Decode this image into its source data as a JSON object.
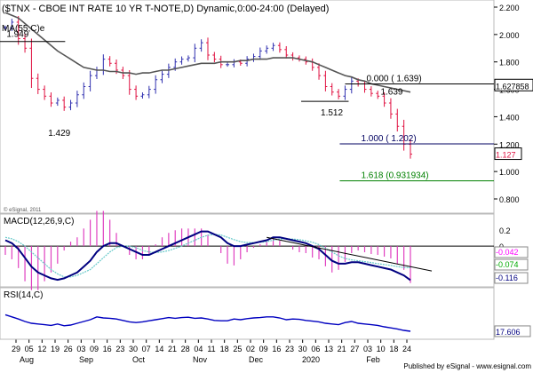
{
  "header": {
    "title": "($TNX - CBOE INT RATE 10 YR T-NOTE,D) Dynamic,0:00-24:00 (Delayed)",
    "ma_label": "MA(55,C)e",
    "copyright": "© eSignal, 2011",
    "footer": "Published by eSignal - www.esignal.com"
  },
  "chart_data": {
    "type": "line",
    "symbol": "$TNX",
    "subtitle": "",
    "x_tick_labels": [
      "29",
      "05",
      "12",
      "19",
      "26",
      "03",
      "09",
      "16",
      "23",
      "30",
      "07",
      "14",
      "21",
      "28",
      "04",
      "11",
      "18",
      "25",
      "02",
      "09",
      "16",
      "23",
      "30",
      "06",
      "13",
      "21",
      "27",
      "03",
      "10",
      "18",
      "24"
    ],
    "month_labels": [
      "Aug",
      "Sep",
      "Oct",
      "Nov",
      "Dec",
      "2020",
      "Feb"
    ],
    "price_panel": {
      "y_ticks": [
        "2.200",
        "2.000",
        "1.800",
        "1.600",
        "1.400",
        "1.200",
        "1.000",
        "0.800"
      ],
      "ylim": [
        0.8,
        2.2
      ],
      "last_price": "1.127",
      "marker_price": "1.627858",
      "colors": {
        "up": "#3030b0",
        "down": "#e01040",
        "ma": "#555555"
      },
      "close": [
        2.05,
        2.09,
        1.97,
        1.9,
        1.68,
        1.6,
        1.55,
        1.5,
        1.52,
        1.47,
        1.5,
        1.56,
        1.62,
        1.7,
        1.74,
        1.82,
        1.79,
        1.74,
        1.7,
        1.6,
        1.55,
        1.56,
        1.6,
        1.67,
        1.71,
        1.76,
        1.8,
        1.82,
        1.83,
        1.9,
        1.94,
        1.85,
        1.82,
        1.78,
        1.78,
        1.8,
        1.79,
        1.82,
        1.84,
        1.88,
        1.9,
        1.92,
        1.89,
        1.85,
        1.83,
        1.82,
        1.8,
        1.76,
        1.7,
        1.62,
        1.58,
        1.55,
        1.6,
        1.66,
        1.64,
        1.6,
        1.57,
        1.55,
        1.5,
        1.42,
        1.33,
        1.2,
        1.127
      ],
      "ma55": [
        2.16,
        2.14,
        2.12,
        2.08,
        2.04,
        2.0,
        1.96,
        1.92,
        1.88,
        1.85,
        1.82,
        1.79,
        1.76,
        1.75,
        1.74,
        1.74,
        1.73,
        1.73,
        1.72,
        1.72,
        1.71,
        1.72,
        1.72,
        1.73,
        1.74,
        1.74,
        1.75,
        1.76,
        1.77,
        1.78,
        1.79,
        1.79,
        1.79,
        1.8,
        1.8,
        1.8,
        1.81,
        1.81,
        1.82,
        1.82,
        1.82,
        1.83,
        1.83,
        1.83,
        1.83,
        1.82,
        1.81,
        1.8,
        1.78,
        1.76,
        1.74,
        1.72,
        1.7,
        1.69,
        1.67,
        1.66,
        1.64,
        1.63,
        1.62,
        1.61,
        1.6,
        1.59,
        1.58
      ],
      "annotations": [
        {
          "label": "1.949",
          "value": 1.949
        },
        {
          "label": "1.429",
          "value": 1.429
        },
        {
          "label": "1.512",
          "value": 1.512
        },
        {
          "label": "1.639",
          "value": 1.639
        }
      ],
      "fib_levels": [
        {
          "label": "0.000 ( 1.639)",
          "value": 1.639,
          "color": "#000000"
        },
        {
          "label": "1.000 ( 1.202)",
          "value": 1.202,
          "color": "#000060"
        },
        {
          "label": "1.618 (0.931934)",
          "value": 0.931934,
          "color": "#008000"
        }
      ]
    },
    "macd_panel": {
      "label": "MACD(12,26,9,C)",
      "ylim": [
        -0.13,
        0.07
      ],
      "y_ticks": [
        "0.2"
      ],
      "zero_label": "0",
      "value_labels": [
        {
          "text": "-0.042",
          "color": "#ff00ff"
        },
        {
          "text": "-0.074",
          "color": "#00aa00"
        },
        {
          "text": "-0.116",
          "color": "#000080"
        }
      ],
      "macd": [
        0.02,
        0.01,
        -0.01,
        -0.04,
        -0.07,
        -0.09,
        -0.1,
        -0.11,
        -0.115,
        -0.11,
        -0.1,
        -0.09,
        -0.07,
        -0.05,
        -0.02,
        0.0,
        0.01,
        0.01,
        0.0,
        -0.01,
        -0.02,
        -0.03,
        -0.03,
        -0.02,
        -0.01,
        0.0,
        0.01,
        0.02,
        0.03,
        0.04,
        0.05,
        0.05,
        0.04,
        0.03,
        0.01,
        0.0,
        0.0,
        0.005,
        0.01,
        0.015,
        0.02,
        0.03,
        0.03,
        0.025,
        0.02,
        0.015,
        0.01,
        0.0,
        -0.01,
        -0.03,
        -0.05,
        -0.06,
        -0.06,
        -0.055,
        -0.055,
        -0.06,
        -0.065,
        -0.07,
        -0.075,
        -0.08,
        -0.09,
        -0.1,
        -0.116
      ],
      "signal": [
        0.03,
        0.025,
        0.015,
        0.0,
        -0.02,
        -0.04,
        -0.06,
        -0.08,
        -0.095,
        -0.105,
        -0.105,
        -0.1,
        -0.09,
        -0.08,
        -0.06,
        -0.04,
        -0.02,
        -0.005,
        0.0,
        0.0,
        -0.005,
        -0.015,
        -0.02,
        -0.022,
        -0.02,
        -0.015,
        -0.008,
        0.0,
        0.01,
        0.02,
        0.03,
        0.037,
        0.04,
        0.038,
        0.03,
        0.022,
        0.015,
        0.012,
        0.012,
        0.013,
        0.015,
        0.02,
        0.024,
        0.025,
        0.024,
        0.022,
        0.018,
        0.013,
        0.005,
        -0.007,
        -0.02,
        -0.033,
        -0.042,
        -0.047,
        -0.05,
        -0.053,
        -0.056,
        -0.06,
        -0.063,
        -0.066,
        -0.07,
        -0.073,
        -0.074
      ],
      "trendline": {
        "start_value": 0.03,
        "end_value": -0.085
      }
    },
    "rsi_panel": {
      "label": "RSI(14,C)",
      "ylim": [
        0,
        100
      ],
      "last_value": "17.606",
      "rsi": [
        64,
        58,
        52,
        45,
        40,
        38,
        36,
        34,
        38,
        33,
        35,
        40,
        45,
        50,
        58,
        55,
        54,
        52,
        48,
        44,
        42,
        44,
        47,
        50,
        53,
        56,
        54,
        56,
        57,
        54,
        55,
        52,
        48,
        47,
        47,
        52,
        50,
        53,
        55,
        56,
        58,
        58,
        55,
        50,
        52,
        51,
        48,
        46,
        44,
        40,
        38,
        36,
        42,
        45,
        40,
        38,
        36,
        34,
        30,
        27,
        24,
        20,
        17.606
      ]
    }
  }
}
